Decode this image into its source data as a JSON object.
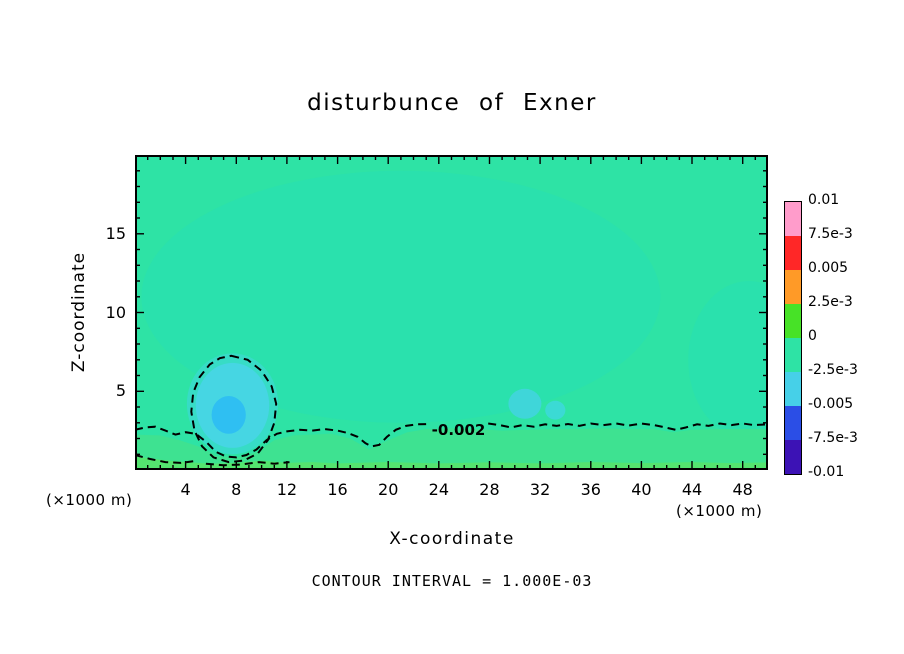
{
  "chart_data": {
    "type": "heatmap",
    "title": "disturbunce of Exner",
    "xlabel": "X-coordinate",
    "ylabel": "Z-coordinate",
    "x_unit_label": "(×1000 m)",
    "y_unit_label": "(×1000 m)",
    "xlim": [
      0,
      50
    ],
    "ylim": [
      0,
      20
    ],
    "x_major_ticks": [
      4,
      8,
      12,
      16,
      20,
      24,
      28,
      32,
      36,
      40,
      44,
      48
    ],
    "x_minor_step": 1,
    "y_major_ticks": [
      5,
      10,
      15
    ],
    "y_minor_step": 1,
    "grid": false,
    "contour_note": "CONTOUR INTERVAL = 1.000E-03",
    "colorbar": {
      "position": "right",
      "tick_labels": [
        "0.01",
        "7.5e-3",
        "0.005",
        "2.5e-3",
        "0",
        "-2.5e-3",
        "-0.005",
        "-7.5e-3",
        "-0.01"
      ],
      "colors_top_to_bottom": [
        "#ff9ccb",
        "#ff2727",
        "#ff9a27",
        "#47e227",
        "#2ee3a5",
        "#46d0e8",
        "#2b4ee6",
        "#3c12b5"
      ]
    },
    "field": {
      "background_color": "#2ee3a5",
      "patches": [
        {
          "type": "ellipse",
          "cx": 21,
          "cz": 11,
          "rx": 20.5,
          "rz": 8,
          "color": "#2ae1ad"
        },
        {
          "type": "ellipse",
          "cx": 48.5,
          "cz": 7,
          "rx": 4.8,
          "rz": 5,
          "color": "#2ae1ad"
        },
        {
          "type": "polygon",
          "color": "#3ee291",
          "points": [
            [
              0,
              2.25
            ],
            [
              2,
              2.2
            ],
            [
              3.5,
              1.9
            ],
            [
              5,
              1.5
            ],
            [
              6.5,
              0.9
            ],
            [
              8,
              0.8
            ],
            [
              9.5,
              1.1
            ],
            [
              11,
              1.9
            ],
            [
              12.5,
              2.2
            ],
            [
              14,
              2.25
            ],
            [
              15.5,
              2.3
            ],
            [
              17,
              2.0
            ],
            [
              18.5,
              1.3
            ],
            [
              20,
              1.9
            ],
            [
              21.5,
              2.4
            ],
            [
              23,
              2.6
            ],
            [
              25,
              2.65
            ],
            [
              27,
              2.6
            ],
            [
              29,
              2.5
            ],
            [
              31,
              2.55
            ],
            [
              33,
              2.6
            ],
            [
              35,
              2.6
            ],
            [
              37,
              2.65
            ],
            [
              39,
              2.6
            ],
            [
              41,
              2.6
            ],
            [
              42.5,
              2.4
            ],
            [
              44,
              2.55
            ],
            [
              46,
              2.6
            ],
            [
              48,
              2.6
            ],
            [
              50,
              2.6
            ],
            [
              50,
              0
            ],
            [
              0,
              0
            ]
          ]
        },
        {
          "type": "polygon",
          "color": "#54e46f",
          "points": [
            [
              0,
              0.85
            ],
            [
              2,
              0.65
            ],
            [
              4,
              0.5
            ],
            [
              6,
              0.4
            ],
            [
              8,
              0.45
            ],
            [
              10,
              0.6
            ],
            [
              12,
              0.45
            ],
            [
              14,
              0.5
            ],
            [
              16,
              0.42
            ],
            [
              20,
              0.5
            ],
            [
              24,
              0.42
            ],
            [
              28,
              0.48
            ],
            [
              32,
              0.42
            ],
            [
              36,
              0.5
            ],
            [
              40,
              0.44
            ],
            [
              44,
              0.5
            ],
            [
              47,
              0.44
            ],
            [
              50,
              0.48
            ],
            [
              50,
              0
            ],
            [
              0,
              0
            ]
          ]
        },
        {
          "type": "ellipse",
          "cx": 7.7,
          "cz": 4.2,
          "rx": 3.6,
          "rz": 3.2,
          "color": "#37dcc6"
        },
        {
          "type": "ellipse",
          "cx": 7.7,
          "cz": 4.1,
          "rx": 2.9,
          "rz": 2.7,
          "color": "#46d6e3"
        },
        {
          "type": "ellipse",
          "cx": 7.4,
          "cz": 3.5,
          "rx": 1.35,
          "rz": 1.2,
          "color": "#2fbff2"
        },
        {
          "type": "ellipse",
          "cx": 30.8,
          "cz": 4.2,
          "rx": 1.3,
          "rz": 0.95,
          "color": "#3fd6d9"
        },
        {
          "type": "ellipse",
          "cx": 33.2,
          "cz": 3.8,
          "rx": 0.8,
          "rz": 0.6,
          "color": "#3bdad4"
        }
      ],
      "contour_label": {
        "text": "-0.002",
        "x": 25.55,
        "z": 2.55
      },
      "contour_paths": [
        {
          "closed": false,
          "points": [
            [
              0,
              2.55
            ],
            [
              0.8,
              2.7
            ],
            [
              1.6,
              2.75
            ],
            [
              2.4,
              2.5
            ],
            [
              3.2,
              2.25
            ],
            [
              4.0,
              2.4
            ],
            [
              4.8,
              2.3
            ],
            [
              5.6,
              1.8
            ],
            [
              6.4,
              1.15
            ],
            [
              7.2,
              0.85
            ],
            [
              8.0,
              0.8
            ],
            [
              8.8,
              0.95
            ],
            [
              9.6,
              1.3
            ],
            [
              10.4,
              1.9
            ],
            [
              11.2,
              2.3
            ],
            [
              12.0,
              2.45
            ],
            [
              13.0,
              2.55
            ],
            [
              14.0,
              2.5
            ],
            [
              15.0,
              2.6
            ],
            [
              16.0,
              2.5
            ],
            [
              16.8,
              2.35
            ],
            [
              17.6,
              2.1
            ],
            [
              18.2,
              1.7
            ],
            [
              18.7,
              1.5
            ],
            [
              19.3,
              1.6
            ],
            [
              19.9,
              2.1
            ],
            [
              20.6,
              2.55
            ],
            [
              21.4,
              2.8
            ],
            [
              22.3,
              2.9
            ],
            [
              23.2,
              2.92
            ]
          ]
        },
        {
          "closed": false,
          "points": [
            [
              27.9,
              2.95
            ],
            [
              28.8,
              2.85
            ],
            [
              29.7,
              2.7
            ],
            [
              30.6,
              2.85
            ],
            [
              31.5,
              2.75
            ],
            [
              32.4,
              2.9
            ],
            [
              33.3,
              2.8
            ],
            [
              34.2,
              2.92
            ],
            [
              35.1,
              2.8
            ],
            [
              36.0,
              2.95
            ],
            [
              37.0,
              2.85
            ],
            [
              38.0,
              2.95
            ],
            [
              39.0,
              2.82
            ],
            [
              40.0,
              2.95
            ],
            [
              41.0,
              2.85
            ],
            [
              41.9,
              2.7
            ],
            [
              42.7,
              2.55
            ],
            [
              43.5,
              2.7
            ],
            [
              44.4,
              2.9
            ],
            [
              45.3,
              2.8
            ],
            [
              46.2,
              2.95
            ],
            [
              47.1,
              2.85
            ],
            [
              48.0,
              2.95
            ],
            [
              48.9,
              2.85
            ],
            [
              50,
              2.9
            ]
          ]
        },
        {
          "closed": true,
          "points": [
            [
              7.6,
              7.25
            ],
            [
              8.9,
              7.0
            ],
            [
              10.0,
              6.3
            ],
            [
              10.8,
              5.3
            ],
            [
              11.15,
              4.2
            ],
            [
              11.0,
              3.0
            ],
            [
              10.5,
              1.9
            ],
            [
              9.7,
              1.05
            ],
            [
              8.6,
              0.6
            ],
            [
              7.4,
              0.5
            ],
            [
              6.2,
              0.8
            ],
            [
              5.3,
              1.5
            ],
            [
              4.7,
              2.5
            ],
            [
              4.45,
              3.7
            ],
            [
              4.6,
              4.9
            ],
            [
              5.1,
              5.9
            ],
            [
              5.9,
              6.7
            ],
            [
              6.7,
              7.1
            ]
          ]
        },
        {
          "closed": false,
          "points": [
            [
              0,
              0.95
            ],
            [
              1.2,
              0.7
            ],
            [
              2.4,
              0.5
            ],
            [
              3.6,
              0.45
            ],
            [
              4.6,
              0.55
            ]
          ]
        },
        {
          "closed": false,
          "points": [
            [
              5.6,
              0.4
            ],
            [
              7.0,
              0.3
            ],
            [
              8.4,
              0.35
            ],
            [
              9.8,
              0.5
            ],
            [
              11.0,
              0.4
            ],
            [
              12.2,
              0.5
            ]
          ]
        }
      ]
    }
  }
}
